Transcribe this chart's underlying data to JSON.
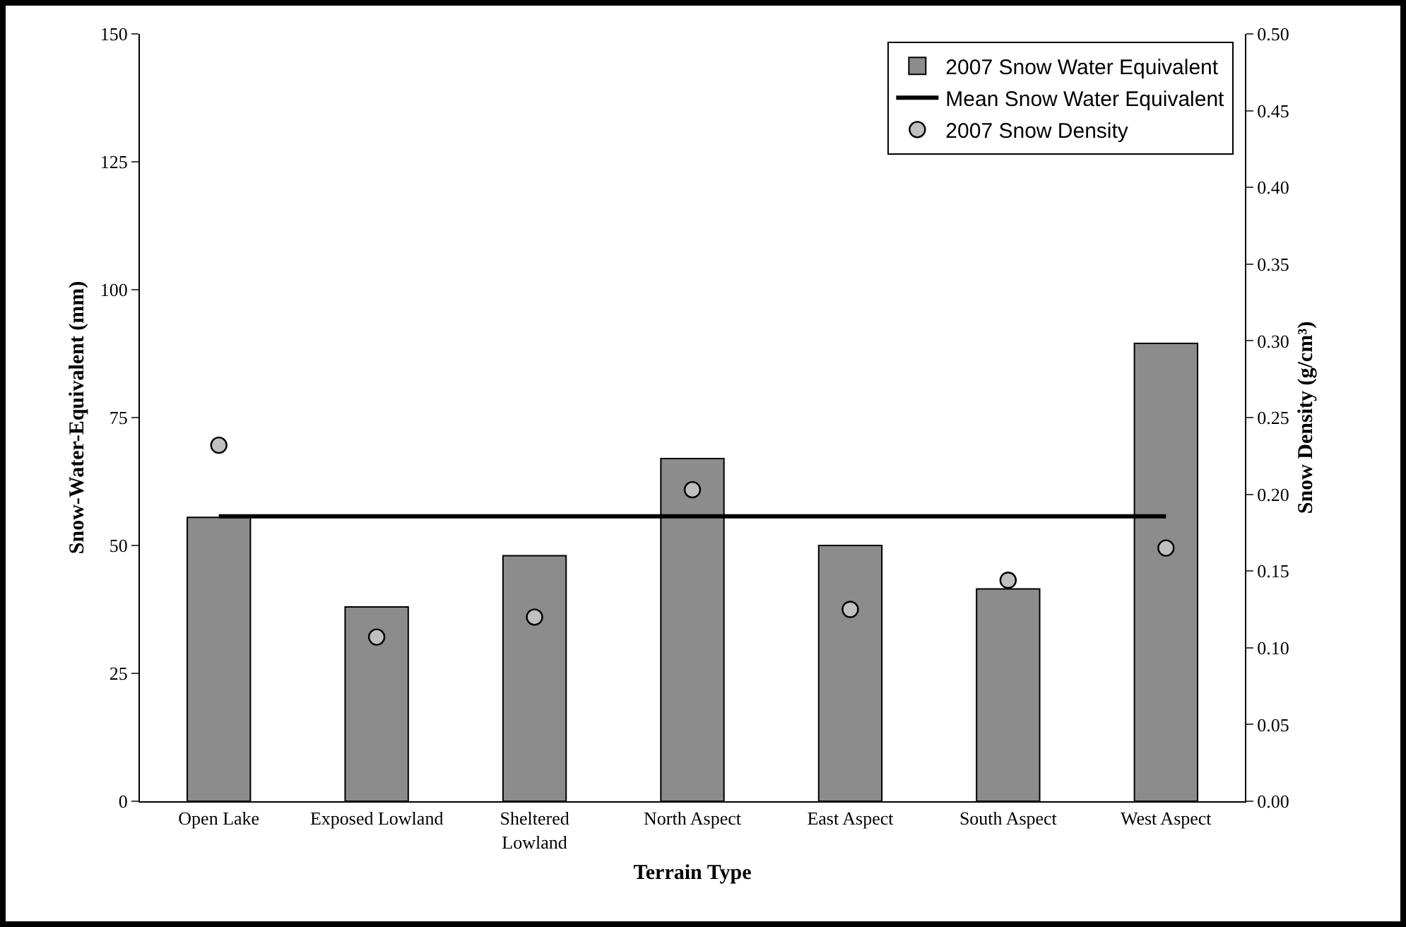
{
  "chart_data": {
    "type": "bar",
    "xlabel": "Terrain Type",
    "ylabel": "Snow-Water-Equivalent (mm)",
    "y2label": "Snow Density (g/cm³)",
    "categories": [
      "Open Lake",
      "Exposed Lowland",
      "Sheltered\nLowland",
      "North Aspect",
      "East Aspect",
      "South Aspect",
      "West Aspect"
    ],
    "series": [
      {
        "name": "2007 Snow Water Equivalent",
        "color": "#8c8c8c",
        "values": [
          55.5,
          38,
          48,
          67,
          50,
          41.5,
          89.5
        ]
      },
      {
        "name": "Mean Snow Water Equivalent",
        "type": "line",
        "marker": "none",
        "color": "#000000",
        "values": [
          55.7,
          55.7,
          55.7,
          55.7,
          55.7,
          55.7,
          55.7
        ]
      },
      {
        "name": "2007 Snow Density",
        "type": "scatter",
        "axis": "y2",
        "color": "#c0c0c0",
        "values": [
          0.232,
          0.107,
          0.12,
          0.203,
          0.125,
          0.144,
          0.165
        ]
      }
    ],
    "ylim": [
      0,
      150
    ],
    "yticks": [
      0,
      25,
      50,
      75,
      100,
      125,
      150
    ],
    "y2lim": [
      0,
      0.5
    ],
    "y2ticks": [
      {
        "value": 0,
        "label": "0.00"
      },
      {
        "value": 0.05,
        "label": "0.05"
      },
      {
        "value": 0.1,
        "label": "0.10"
      },
      {
        "value": 0.15,
        "label": "0.15"
      },
      {
        "value": 0.2,
        "label": "0.20"
      },
      {
        "value": 0.25,
        "label": "0.25"
      },
      {
        "value": 0.3,
        "label": "0.30"
      },
      {
        "value": 0.35,
        "label": "0.35"
      },
      {
        "value": 0.4,
        "label": "0.40"
      },
      {
        "value": 0.45,
        "label": "0.45"
      },
      {
        "value": 0.5,
        "label": "0.50"
      }
    ],
    "grid": false,
    "legend": "top right",
    "marker": "circle",
    "line_style": "solid"
  }
}
